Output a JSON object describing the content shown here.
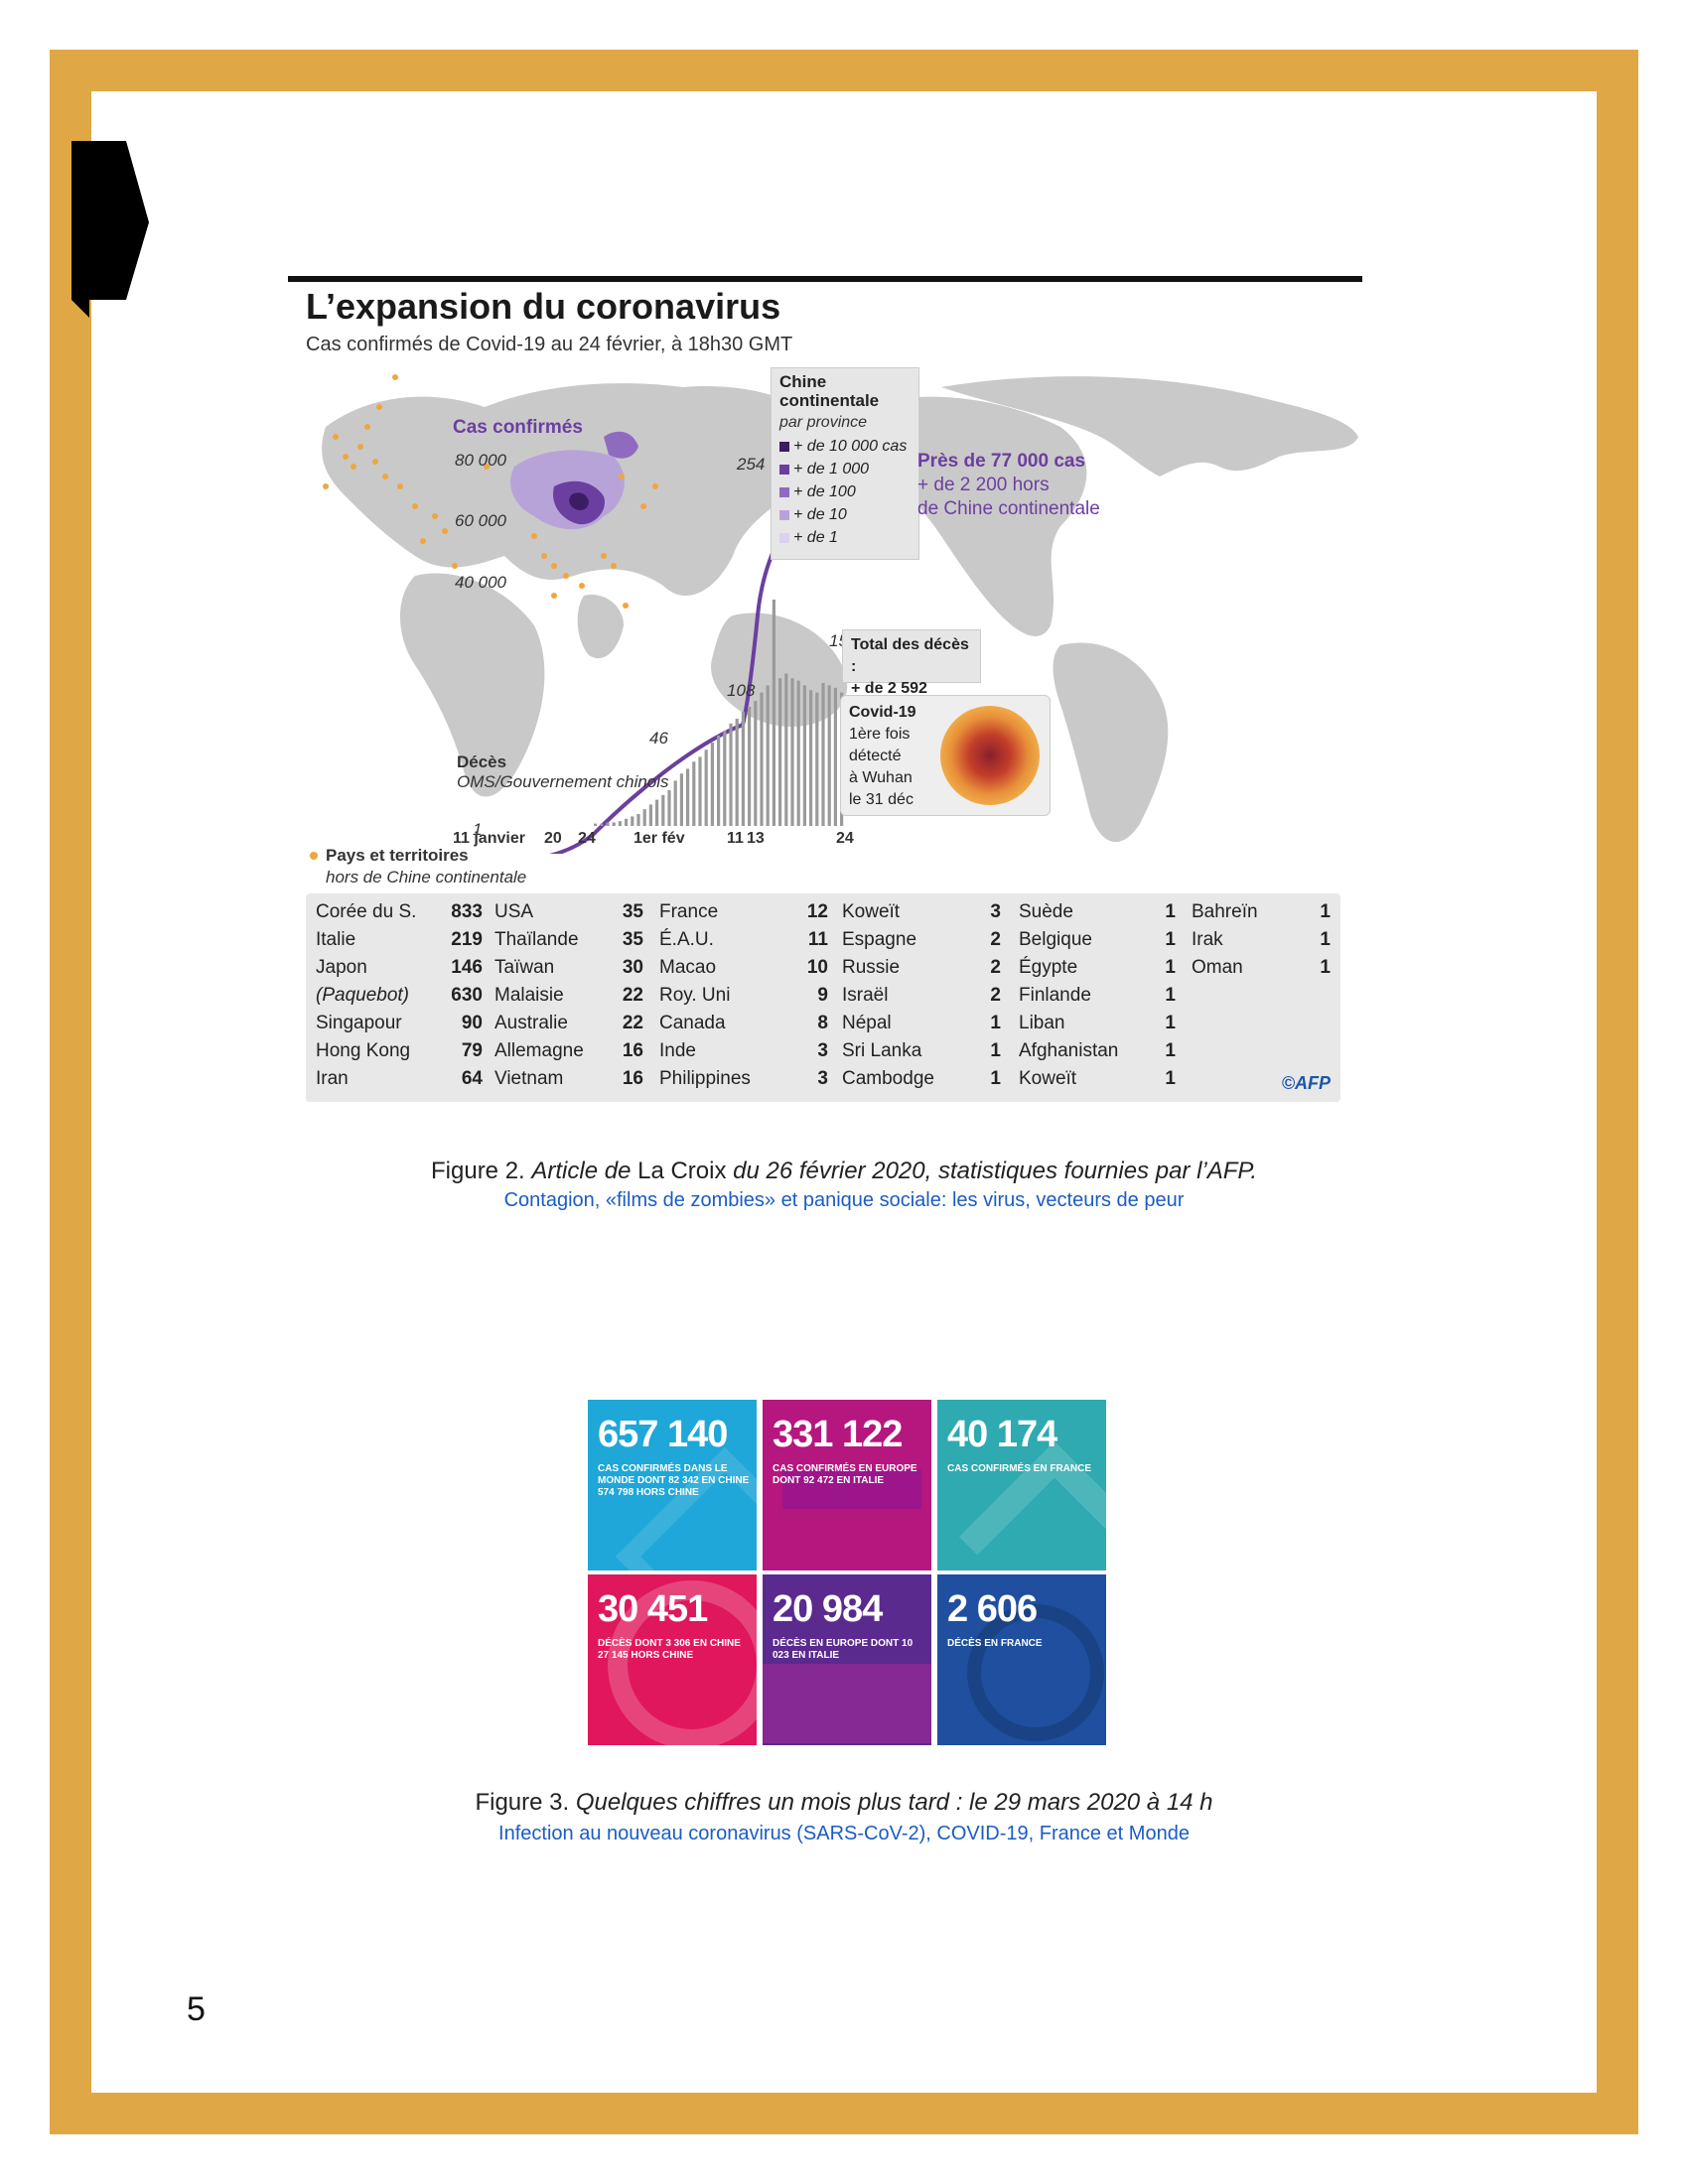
{
  "page_number": "5",
  "figure2": {
    "title": "L’expansion du coronavirus",
    "subtitle": "Cas confirmés de Covid-19 au 24 février, à 18h30 GMT",
    "cases_label": "Cas confirmés",
    "y_ticks": [
      "80 000",
      "60 000",
      "40 000"
    ],
    "china_legend": {
      "title": "Chine continentale",
      "subtitle": "par province",
      "items": [
        {
          "label": "+ de 10 000 cas",
          "color": "#3c1c63"
        },
        {
          "label": "+ de 1 000",
          "color": "#6b3fa0"
        },
        {
          "label": "+ de 100",
          "color": "#8f6bc0"
        },
        {
          "label": "+ de 10",
          "color": "#b8a3d8"
        },
        {
          "label": "+ de 1",
          "color": "#dcd2ee"
        }
      ]
    },
    "headline_cases": "Près de 77 000 cas",
    "headline_sub1": "+ de 2 200 hors",
    "headline_sub2": "de Chine continentale",
    "deaths_label": "Décès",
    "deaths_source": "OMS/Gouvernement chinois",
    "bar_labels": {
      "first": "1",
      "a": "46",
      "b": "108",
      "c": "254",
      "d": "150"
    },
    "x_labels": [
      "11 janvier",
      "20",
      "24",
      "1er fév",
      "11",
      "13",
      "24"
    ],
    "total_deaths_title": "Total des décès :",
    "total_deaths_value": "+ de 2 592",
    "covid_box": {
      "line1": "Covid-19",
      "line2": "1ère fois",
      "line3": "détecté",
      "line4": "à Wuhan",
      "line5": "le 31 déc"
    },
    "countries_title": "Pays et territoires",
    "countries_sub": "hors de Chine continentale",
    "accent_color": "#6b3fa0",
    "dot_color": "#f0a640",
    "table": [
      [
        [
          "Corée du S.",
          "833"
        ],
        [
          "Italie",
          "219"
        ],
        [
          "Japon",
          "146"
        ],
        [
          "(Paquebot)",
          "630"
        ],
        [
          "Singapour",
          "90"
        ],
        [
          "Hong Kong",
          "79"
        ],
        [
          "Iran",
          "64"
        ]
      ],
      [
        [
          "USA",
          "35"
        ],
        [
          "Thaïlande",
          "35"
        ],
        [
          "Taïwan",
          "30"
        ],
        [
          "Malaisie",
          "22"
        ],
        [
          "Australie",
          "22"
        ],
        [
          "Allemagne",
          "16"
        ],
        [
          "Vietnam",
          "16"
        ]
      ],
      [
        [
          "France",
          "12"
        ],
        [
          "É.A.U.",
          "11"
        ],
        [
          "Macao",
          "10"
        ],
        [
          "Roy. Uni",
          "9"
        ],
        [
          "Canada",
          "8"
        ],
        [
          "Inde",
          "3"
        ],
        [
          "Philippines",
          "3"
        ]
      ],
      [
        [
          "Koweït",
          "3"
        ],
        [
          "Espagne",
          "2"
        ],
        [
          "Russie",
          "2"
        ],
        [
          "Israël",
          "2"
        ],
        [
          "Népal",
          "1"
        ],
        [
          "Sri Lanka",
          "1"
        ],
        [
          "Cambodge",
          "1"
        ]
      ],
      [
        [
          "Suède",
          "1"
        ],
        [
          "Belgique",
          "1"
        ],
        [
          "Égypte",
          "1"
        ],
        [
          "Finlande",
          "1"
        ],
        [
          "Liban",
          "1"
        ],
        [
          "Afghanistan",
          "1"
        ],
        [
          "Koweït",
          "1"
        ]
      ],
      [
        [
          "Bahreïn",
          "1"
        ],
        [
          "Irak",
          "1"
        ],
        [
          "Oman",
          "1"
        ]
      ]
    ],
    "credit": "©AFP"
  },
  "caption2": {
    "prefix": "Figure 2. ",
    "italic1": "Article de",
    "normal": " La Croix ",
    "italic2": "du 26 février 2020, statistiques fournies par l’AFP.",
    "link": "Contagion, «films de zombies» et panique sociale: les virus, vecteurs de peur"
  },
  "figure3": {
    "tiles": [
      {
        "number": "657 140",
        "desc": "Cas confirmés dans le monde dont 82 342 en Chine 574 798 hors Chine",
        "color": "#1ea7d8"
      },
      {
        "number": "331 122",
        "desc": "Cas confirmés en Europe dont 92 472 en Italie",
        "color": "#b5177e"
      },
      {
        "number": "40 174",
        "desc": "Cas confirmés en France",
        "color": "#2eaab0"
      },
      {
        "number": "30 451",
        "desc": "Décès dont 3 306 en Chine 27 145 hors Chine",
        "color": "#e0175c"
      },
      {
        "number": "20 984",
        "desc": "Décès en Europe dont 10 023 en Italie",
        "color": "#5a2a8e"
      },
      {
        "number": "2 606",
        "desc": "Décès en France",
        "color": "#1f4f9e"
      }
    ]
  },
  "caption3": {
    "prefix": "Figure 3. ",
    "italic": "Quelques chiffres un mois plus tard : le 29 mars 2020 à 14 h",
    "link": "Infection au nouveau coronavirus (SARS-CoV-2), COVID-19, France et Monde"
  }
}
